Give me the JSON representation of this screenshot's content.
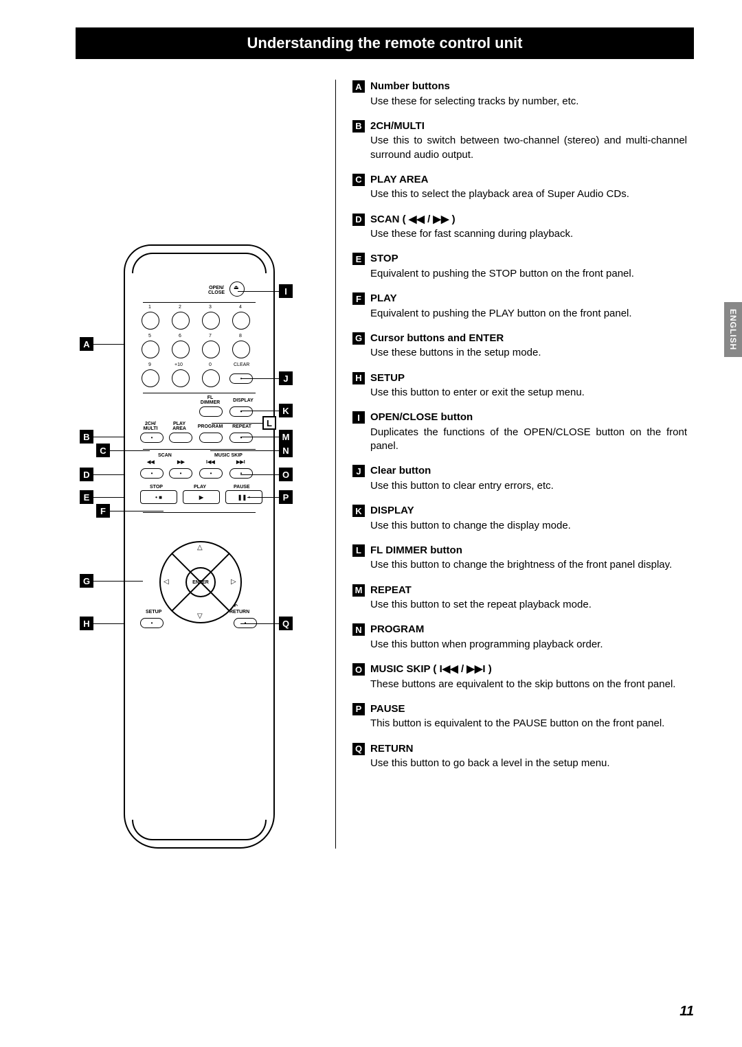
{
  "title": "Understanding the remote control unit",
  "side_tab": "ENGLISH",
  "page_number": "11",
  "items": [
    {
      "key": "A",
      "title": "Number buttons",
      "desc": "Use these for selecting tracks by number, etc."
    },
    {
      "key": "B",
      "title": "2CH/MULTI",
      "desc": "Use this to switch between two-channel (stereo) and multi-channel surround audio output."
    },
    {
      "key": "C",
      "title": "PLAY AREA",
      "desc": "Use this to select the playback area of Super Audio CDs."
    },
    {
      "key": "D",
      "title": "SCAN ( ◀◀ / ▶▶ )",
      "desc": "Use these for fast scanning during playback."
    },
    {
      "key": "E",
      "title": "STOP",
      "desc": "Equivalent to pushing the STOP button on the front panel."
    },
    {
      "key": "F",
      "title": "PLAY",
      "desc": "Equivalent to pushing the PLAY button on the front panel."
    },
    {
      "key": "G",
      "title": "Cursor buttons and ENTER",
      "desc": "Use these buttons in the setup mode."
    },
    {
      "key": "H",
      "title": "SETUP",
      "desc": "Use this button to enter or exit the setup menu."
    },
    {
      "key": "I",
      "title": "OPEN/CLOSE button",
      "desc": "Duplicates the functions of the OPEN/CLOSE button on the front panel."
    },
    {
      "key": "J",
      "title": "Clear button",
      "desc": "Use this button to clear entry errors, etc."
    },
    {
      "key": "K",
      "title": "DISPLAY",
      "desc": "Use this button to change the display mode."
    },
    {
      "key": "L",
      "title": "FL DIMMER button",
      "desc": "Use this button to change the brightness of the front panel display."
    },
    {
      "key": "M",
      "title": "REPEAT",
      "desc": "Use this button to set the repeat playback mode."
    },
    {
      "key": "N",
      "title": "PROGRAM",
      "desc": "Use this button when programming playback order."
    },
    {
      "key": "O",
      "title": "MUSIC SKIP ( I◀◀ / ▶▶I )",
      "desc": "These buttons are equivalent to the skip buttons on the front panel."
    },
    {
      "key": "P",
      "title": "PAUSE",
      "desc": "This button is equivalent to the PAUSE button on the front panel."
    },
    {
      "key": "Q",
      "title": "RETURN",
      "desc": "Use this button to go back a level in the setup menu."
    }
  ],
  "remote": {
    "open_close": "OPEN/\nCLOSE",
    "numbers": [
      "1",
      "2",
      "3",
      "4",
      "5",
      "6",
      "7",
      "8",
      "9",
      "+10",
      "0"
    ],
    "clear": "CLEAR",
    "fl_dimmer": "FL\nDIMMER",
    "display": "DISPLAY",
    "twoch_multi": "2CH/\nMULTI",
    "play_area": "PLAY\nAREA",
    "program": "PROGRAM",
    "repeat": "REPEAT",
    "scan": "SCAN",
    "music_skip": "MUSIC SKIP",
    "stop": "STOP",
    "play": "PLAY",
    "pause": "PAUSE",
    "enter": "ENTER",
    "setup": "SETUP",
    "return": "RETURN",
    "scan_left_sym": "◀◀",
    "scan_right_sym": "▶▶",
    "skip_left_sym": "I◀◀",
    "skip_right_sym": "▶▶I",
    "stop_sym": "• ■",
    "play_sym": "▶",
    "pause_sym": "❚❚ •",
    "return_sym": "↶"
  },
  "callouts_left": [
    "A",
    "B",
    "C",
    "D",
    "E",
    "F",
    "G",
    "H"
  ],
  "callouts_right": [
    "I",
    "J",
    "K",
    "L",
    "M",
    "N",
    "O",
    "P",
    "Q"
  ]
}
